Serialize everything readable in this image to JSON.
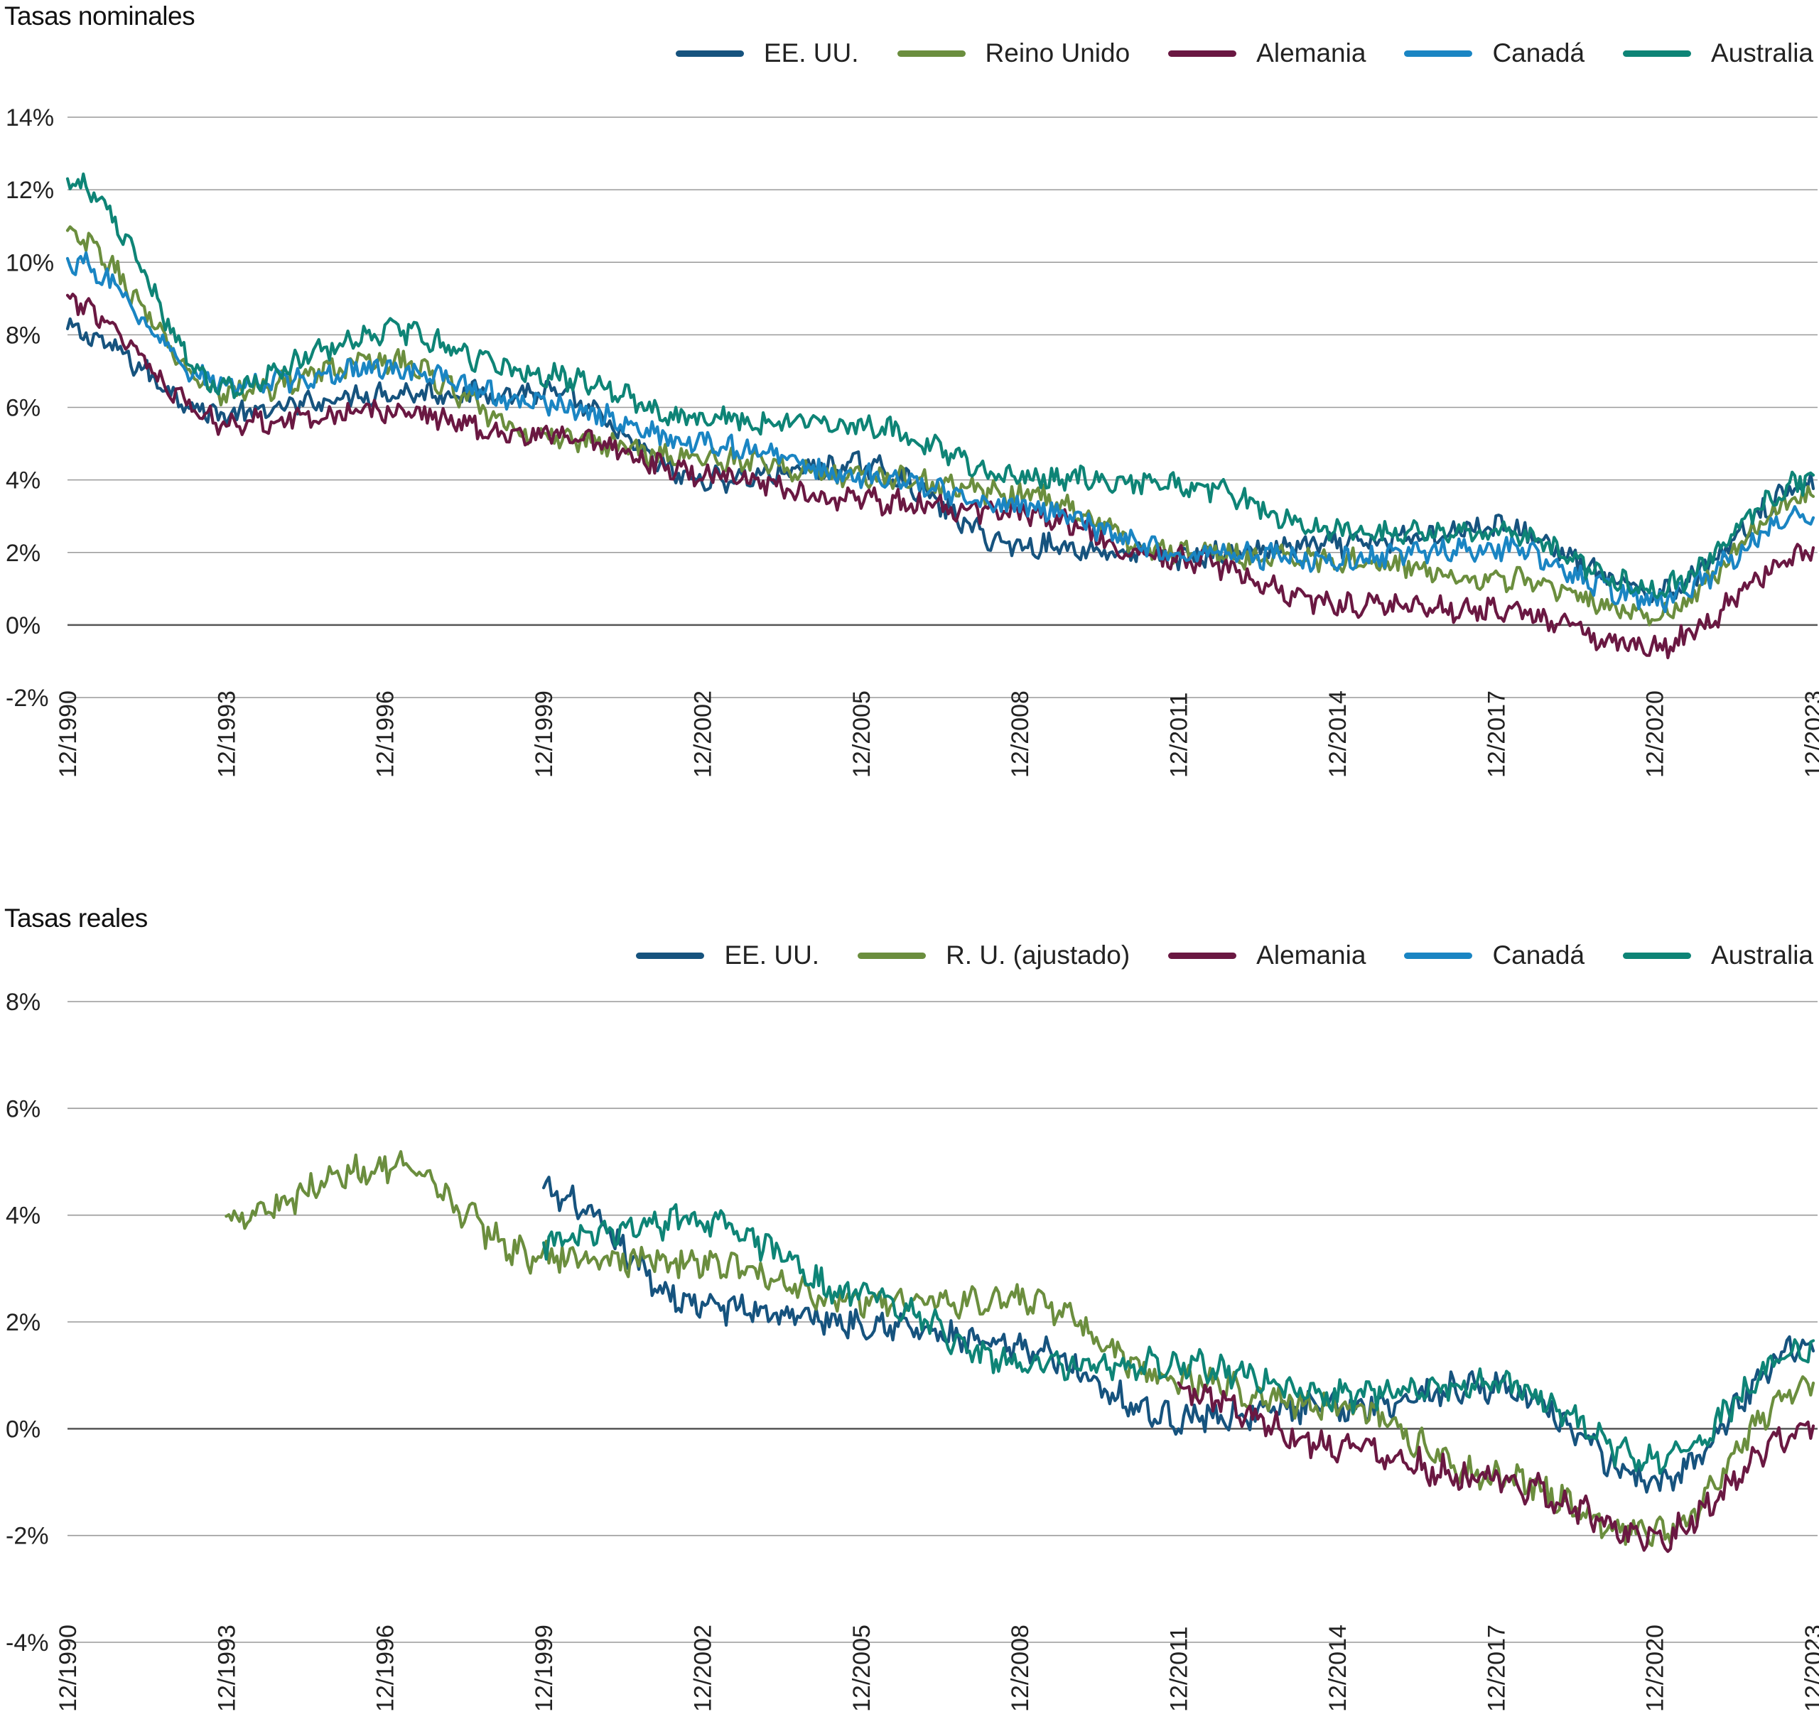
{
  "chart_data": [
    {
      "type": "line",
      "title": "Tasas nominales",
      "x": [
        "12/1990",
        "12/1993",
        "12/1996",
        "12/1999",
        "12/2002",
        "12/2005",
        "12/2008",
        "12/2011",
        "12/2014",
        "12/2017",
        "12/2020",
        "12/2023"
      ],
      "x_tick_labels": [
        "12/1990",
        "12/1993",
        "12/1996",
        "12/1999",
        "12/2002",
        "12/2005",
        "12/2008",
        "12/2011",
        "12/2014",
        "12/2017",
        "12/2020",
        "12/2023"
      ],
      "y_tick_labels": [
        "14%",
        "12%",
        "10%",
        "8%",
        "6%",
        "4%",
        "2%",
        "0%",
        "-2%"
      ],
      "ylim": [
        -2,
        14
      ],
      "grid": true,
      "legend_position": "top-right",
      "series": [
        {
          "name": "EE. UU.",
          "color": "#16537e",
          "values": [
            8.1,
            5.8,
            6.4,
            6.4,
            4.0,
            4.4,
            2.2,
            1.9,
            2.2,
            2.7,
            0.9,
            3.9
          ]
        },
        {
          "name": "Reino Unido",
          "color": "#6b8e3e",
          "values": [
            10.7,
            6.4,
            7.3,
            5.2,
            4.6,
            4.1,
            3.6,
            2.0,
            1.8,
            1.3,
            0.3,
            3.6
          ]
        },
        {
          "name": "Alemania",
          "color": "#6a1842",
          "values": [
            8.9,
            5.6,
            5.9,
            5.2,
            4.2,
            3.4,
            3.1,
            1.8,
            0.6,
            0.4,
            -0.6,
            2.0
          ]
        },
        {
          "name": "Canadá",
          "color": "#1a85c3",
          "values": [
            10.0,
            6.6,
            7.1,
            6.1,
            5.0,
            4.1,
            3.3,
            2.0,
            1.8,
            2.1,
            0.7,
            3.1
          ]
        },
        {
          "name": "Australia",
          "color": "#0e8476",
          "values": [
            12.3,
            6.6,
            8.1,
            6.9,
            5.7,
            5.5,
            4.1,
            3.9,
            2.6,
            2.5,
            1.0,
            4.0
          ]
        }
      ]
    },
    {
      "type": "line",
      "title": "Tasas reales",
      "x": [
        "12/1990",
        "12/1993",
        "12/1996",
        "12/1999",
        "12/2002",
        "12/2005",
        "12/2008",
        "12/2011",
        "12/2014",
        "12/2017",
        "12/2020",
        "12/2023"
      ],
      "x_tick_labels": [
        "12/1990",
        "12/1993",
        "12/1996",
        "12/1999",
        "12/2002",
        "12/2005",
        "12/2008",
        "12/2011",
        "12/2014",
        "12/2017",
        "12/2020",
        "12/2023"
      ],
      "y_tick_labels": [
        "8%",
        "6%",
        "4%",
        "2%",
        "0%",
        "-2%",
        "-4%"
      ],
      "ylim": [
        -4,
        8
      ],
      "grid": true,
      "legend_position": "top-right",
      "series": [
        {
          "name": "EE. UU.",
          "color": "#16537e",
          "values": [
            null,
            null,
            null,
            4.4,
            2.3,
            2.0,
            1.5,
            0.2,
            0.4,
            0.8,
            -1.0,
            1.7
          ]
        },
        {
          "name": "R. U. (ajustado)",
          "color": "#6b8e3e",
          "values": [
            null,
            4.0,
            4.9,
            3.2,
            3.1,
            2.4,
            2.4,
            0.9,
            0.4,
            -0.9,
            -2.0,
            0.9
          ]
        },
        {
          "name": "Alemania",
          "color": "#6a1842",
          "values": [
            null,
            null,
            null,
            null,
            null,
            null,
            null,
            0.7,
            -0.3,
            -1.0,
            -2.0,
            0.0
          ]
        },
        {
          "name": "Canadá",
          "color": "#1a85c3",
          "values": [
            null,
            null,
            null,
            null,
            null,
            null,
            null,
            null,
            null,
            null,
            null,
            null
          ]
        },
        {
          "name": "Australia",
          "color": "#0e8476",
          "values": [
            null,
            null,
            null,
            3.5,
            3.9,
            2.5,
            1.2,
            1.2,
            0.6,
            0.9,
            -0.6,
            1.5
          ]
        }
      ]
    }
  ]
}
